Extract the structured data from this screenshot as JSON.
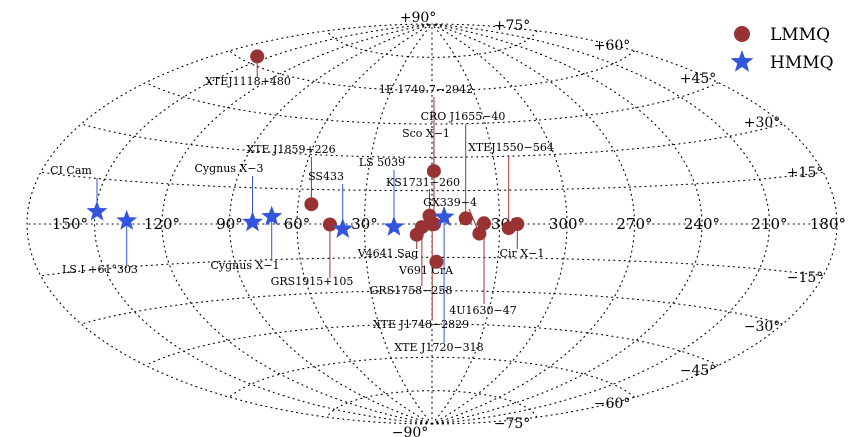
{
  "chart_data": {
    "type": "scatter",
    "projection": "aitoff-galactic",
    "lon_ticks": [
      {
        "lon": 150,
        "label": "150°"
      },
      {
        "lon": 120,
        "label": "120°"
      },
      {
        "lon": 90,
        "label": "90°"
      },
      {
        "lon": 60,
        "label": "60°"
      },
      {
        "lon": 30,
        "label": "30°"
      },
      {
        "lon": 0,
        "label": "0°"
      },
      {
        "lon": 330,
        "label": "330°"
      },
      {
        "lon": 300,
        "label": "300°"
      },
      {
        "lon": 270,
        "label": "270°"
      },
      {
        "lon": 240,
        "label": "240°"
      },
      {
        "lon": 210,
        "label": "210°"
      },
      {
        "lon": 180,
        "label": "180°"
      }
    ],
    "lat_ticks": [
      {
        "lat": 90,
        "label": "+90°"
      },
      {
        "lat": 75,
        "label": "+75°"
      },
      {
        "lat": 60,
        "label": "+60°"
      },
      {
        "lat": 45,
        "label": "+45°"
      },
      {
        "lat": 30,
        "label": "+30°"
      },
      {
        "lat": 15,
        "label": "+15°"
      },
      {
        "lat": -15,
        "label": "−15°"
      },
      {
        "lat": -30,
        "label": "−30°"
      },
      {
        "lat": -45,
        "label": "−45°"
      },
      {
        "lat": -60,
        "label": "−60°"
      },
      {
        "lat": -75,
        "label": "−75°"
      },
      {
        "lat": -90,
        "label": "−90°"
      }
    ],
    "legend": {
      "position": "top-right",
      "entries": [
        {
          "name": "LMMQ",
          "marker": "circle",
          "color": "#993333"
        },
        {
          "name": "HMMQ",
          "marker": "star",
          "color": "#3355dd"
        }
      ]
    },
    "series": [
      {
        "name": "LMMQ",
        "marker": "circle",
        "color": "#993333",
        "points": [
          {
            "name": "XTEJ1118+480",
            "l": 157.7,
            "b": 62.3
          },
          {
            "name": "XTE J1859+226",
            "l": 54.0,
            "b": 8.6
          },
          {
            "name": "GRS1915+105",
            "l": 45.4,
            "b": -0.2
          },
          {
            "name": "Sco X−1",
            "l": 359.1,
            "b": 23.8
          },
          {
            "name": "1E 1740.7−2942",
            "l": 359.1,
            "b": -0.1
          },
          {
            "name": "KS1731−260",
            "l": 1.1,
            "b": 3.7
          },
          {
            "name": "GRS1758−258",
            "l": 4.5,
            "b": -1.4
          },
          {
            "name": "XTE J1748−2829",
            "l": 359.9,
            "b": -0.1
          },
          {
            "name": "V4641 Sag",
            "l": 6.8,
            "b": -4.8
          },
          {
            "name": "V691 CrA",
            "l": 358.0,
            "b": -17.0
          },
          {
            "name": "CRO J1655−40",
            "l": 345.0,
            "b": 2.5
          },
          {
            "name": "GX339−4",
            "l": 338.9,
            "b": -4.3
          },
          {
            "name": "4U1630−47",
            "l": 336.9,
            "b": 0.3
          },
          {
            "name": "XTEJ1550−564",
            "l": 325.9,
            "b": -1.8
          },
          {
            "name": "Cir X−1",
            "l": 322.1,
            "b": 0.0
          }
        ]
      },
      {
        "name": "HMMQ",
        "marker": "star",
        "color": "#3355dd",
        "points": [
          {
            "name": "CI Cam",
            "l": 149.2,
            "b": 4.1
          },
          {
            "name": "LS I +61°303",
            "l": 135.7,
            "b": 1.1
          },
          {
            "name": "Cygnus X−3",
            "l": 79.8,
            "b": 0.7
          },
          {
            "name": "Cygnus X−1",
            "l": 71.3,
            "b": 3.1
          },
          {
            "name": "SS433",
            "l": 39.7,
            "b": -2.2
          },
          {
            "name": "LS 5039",
            "l": 16.9,
            "b": -1.3
          },
          {
            "name": "XTE J1720−318",
            "l": 354.6,
            "b": 3.1
          }
        ]
      }
    ]
  }
}
